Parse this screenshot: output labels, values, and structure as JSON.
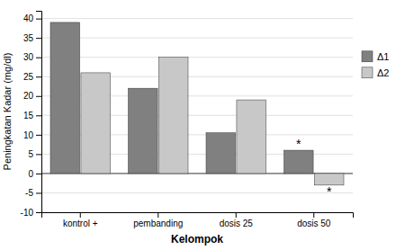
{
  "chart_data": {
    "type": "bar",
    "categories": [
      "kontrol +",
      "pembanding",
      "dosis 25",
      "dosis 50"
    ],
    "series": [
      {
        "name": "Δ1",
        "color": "#808080",
        "values": [
          39,
          22,
          10.5,
          6
        ]
      },
      {
        "name": "Δ2",
        "color": "#c8c8c8",
        "values": [
          26,
          30,
          19,
          -3
        ]
      }
    ],
    "ylabel": "Peningkatan Kadar (mg/dl)",
    "xlabel": "Kelompok",
    "ylim": [
      -10,
      42
    ],
    "yticks": [
      -10,
      -5,
      0,
      5,
      10,
      15,
      20,
      25,
      30,
      35,
      40
    ],
    "grid": true,
    "legend": "right",
    "annotations": [
      {
        "text": "*",
        "series": "Δ1",
        "category": "dosis 50"
      },
      {
        "text": "*",
        "series": "Δ2",
        "category": "dosis 50"
      }
    ]
  }
}
